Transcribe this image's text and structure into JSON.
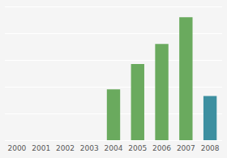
{
  "chart_data": {
    "type": "bar",
    "categories": [
      "2000",
      "2001",
      "2002",
      "2003",
      "2004",
      "2005",
      "2006",
      "2007",
      "2008"
    ],
    "values": [
      0,
      0,
      0,
      0,
      38,
      57,
      72,
      92,
      33
    ],
    "colors": [
      "#6aaa5e",
      "#6aaa5e",
      "#6aaa5e",
      "#6aaa5e",
      "#6aaa5e",
      "#6aaa5e",
      "#6aaa5e",
      "#6aaa5e",
      "#3d8fa0"
    ],
    "ylim": [
      0,
      100
    ],
    "yticks": [
      0,
      20,
      40,
      60,
      80,
      100
    ],
    "grid": true,
    "tick_labels": "x"
  }
}
